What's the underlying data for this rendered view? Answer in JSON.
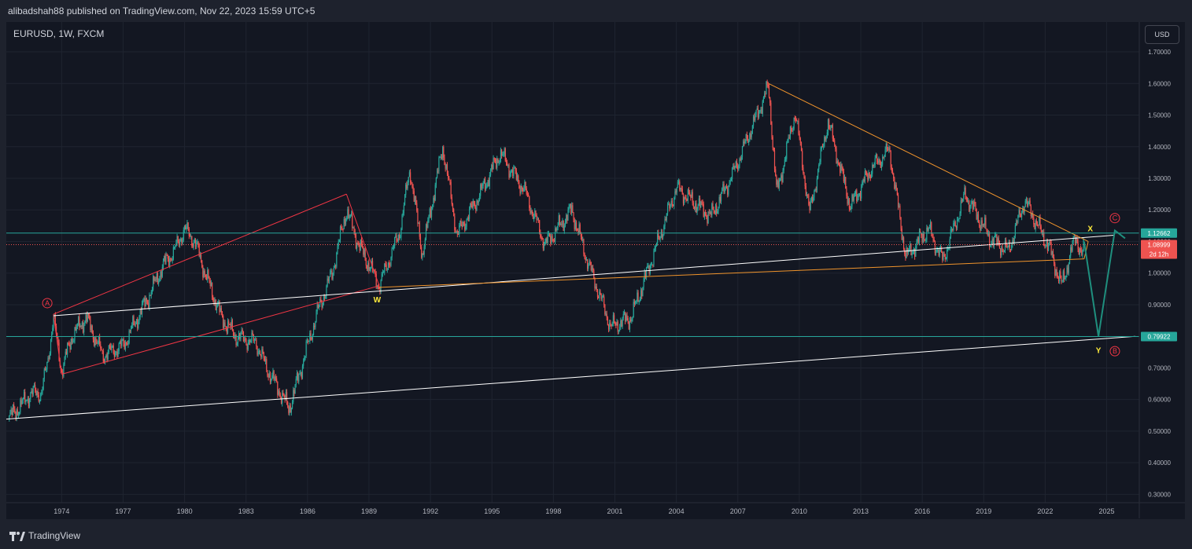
{
  "header": {
    "publisher_text": "alibadshah88 published on TradingView.com, Nov 22, 2023 15:59 UTC+5"
  },
  "chart_info": {
    "symbol_text": "EURUSD, 1W, FXCM"
  },
  "currency_button": {
    "label": "USD"
  },
  "footer": {
    "brand": "TradingView",
    "logo_icon": "tradingview-logo-icon"
  },
  "colors": {
    "background": "#131722",
    "up": "#26a69a",
    "down": "#ef5350",
    "text": "#d1d4dc",
    "channel": "#f23645",
    "wedge": "#f0942c",
    "trendline": "#ffffff",
    "level": "#26a69a",
    "projection": "#1f8f7e",
    "label_yellow": "#ffeb3b"
  },
  "chart_data": {
    "type": "candlestick",
    "title": "EURUSD, 1W, FXCM",
    "xlabel": "",
    "ylabel": "",
    "x_ticks": [
      "1974",
      "1977",
      "1980",
      "1983",
      "1986",
      "1989",
      "1992",
      "1995",
      "1998",
      "2001",
      "2004",
      "2007",
      "2010",
      "2013",
      "2016",
      "2019",
      "2022",
      "2025"
    ],
    "y_ticks": [
      "1.70000",
      "1.60000",
      "1.50000",
      "1.40000",
      "1.30000",
      "1.20000",
      "1.10000",
      "1.00000",
      "0.90000",
      "0.80000",
      "0.70000",
      "0.60000",
      "0.50000",
      "0.40000",
      "0.30000"
    ],
    "ylim": [
      0.275,
      1.72
    ],
    "xlim": [
      1971.3,
      2026.4
    ],
    "grid": true,
    "price_path": [
      {
        "t": 1971.4,
        "p": 0.54
      },
      {
        "t": 1972.0,
        "p": 0.58
      },
      {
        "t": 1972.5,
        "p": 0.62
      },
      {
        "t": 1973.0,
        "p": 0.62
      },
      {
        "t": 1973.3,
        "p": 0.71
      },
      {
        "t": 1973.6,
        "p": 0.86
      },
      {
        "t": 1974.0,
        "p": 0.69
      },
      {
        "t": 1974.5,
        "p": 0.8
      },
      {
        "t": 1975.2,
        "p": 0.86
      },
      {
        "t": 1976.0,
        "p": 0.74
      },
      {
        "t": 1977.0,
        "p": 0.77
      },
      {
        "t": 1978.2,
        "p": 0.92
      },
      {
        "t": 1979.0,
        "p": 1.03
      },
      {
        "t": 1979.5,
        "p": 1.07
      },
      {
        "t": 1980.0,
        "p": 1.14
      },
      {
        "t": 1980.5,
        "p": 1.1
      },
      {
        "t": 1981.0,
        "p": 1.0
      },
      {
        "t": 1981.8,
        "p": 0.86
      },
      {
        "t": 1982.5,
        "p": 0.8
      },
      {
        "t": 1983.5,
        "p": 0.78
      },
      {
        "t": 1984.0,
        "p": 0.7
      },
      {
        "t": 1984.7,
        "p": 0.62
      },
      {
        "t": 1985.1,
        "p": 0.57
      },
      {
        "t": 1985.6,
        "p": 0.68
      },
      {
        "t": 1986.5,
        "p": 0.88
      },
      {
        "t": 1987.2,
        "p": 1.0
      },
      {
        "t": 1987.9,
        "p": 1.2
      },
      {
        "t": 1988.5,
        "p": 1.09
      },
      {
        "t": 1989.5,
        "p": 0.96
      },
      {
        "t": 1990.5,
        "p": 1.13
      },
      {
        "t": 1991.0,
        "p": 1.33
      },
      {
        "t": 1991.6,
        "p": 1.06
      },
      {
        "t": 1992.6,
        "p": 1.4
      },
      {
        "t": 1993.3,
        "p": 1.12
      },
      {
        "t": 1994.5,
        "p": 1.26
      },
      {
        "t": 1995.4,
        "p": 1.38
      },
      {
        "t": 1996.6,
        "p": 1.26
      },
      {
        "t": 1997.6,
        "p": 1.09
      },
      {
        "t": 1998.9,
        "p": 1.2
      },
      {
        "t": 1999.6,
        "p": 1.05
      },
      {
        "t": 2000.8,
        "p": 0.83
      },
      {
        "t": 2001.8,
        "p": 0.86
      },
      {
        "t": 2003.0,
        "p": 1.08
      },
      {
        "t": 2004.0,
        "p": 1.27
      },
      {
        "t": 2005.7,
        "p": 1.18
      },
      {
        "t": 2006.8,
        "p": 1.32
      },
      {
        "t": 2007.8,
        "p": 1.48
      },
      {
        "t": 2008.5,
        "p": 1.59
      },
      {
        "t": 2008.9,
        "p": 1.25
      },
      {
        "t": 2009.8,
        "p": 1.51
      },
      {
        "t": 2010.5,
        "p": 1.19
      },
      {
        "t": 2011.4,
        "p": 1.48
      },
      {
        "t": 2012.5,
        "p": 1.21
      },
      {
        "t": 2013.5,
        "p": 1.33
      },
      {
        "t": 2014.4,
        "p": 1.39
      },
      {
        "t": 2015.2,
        "p": 1.05
      },
      {
        "t": 2016.3,
        "p": 1.14
      },
      {
        "t": 2017.0,
        "p": 1.04
      },
      {
        "t": 2018.1,
        "p": 1.25
      },
      {
        "t": 2019.3,
        "p": 1.11
      },
      {
        "t": 2020.2,
        "p": 1.07
      },
      {
        "t": 2021.0,
        "p": 1.23
      },
      {
        "t": 2022.2,
        "p": 1.08
      },
      {
        "t": 2022.8,
        "p": 0.96
      },
      {
        "t": 2023.5,
        "p": 1.12
      },
      {
        "t": 2023.8,
        "p": 1.05
      },
      {
        "t": 2023.9,
        "p": 1.09
      }
    ],
    "horizontal_levels": [
      {
        "value": 1.12662,
        "label": "1.12662",
        "style": "solid",
        "color": "#26a69a"
      },
      {
        "value": 0.79922,
        "label": "0.79922",
        "style": "solid",
        "color": "#26a69a"
      },
      {
        "value": 1.08999,
        "label": "1.08999",
        "sublabel": "2d 12h",
        "style": "dotted",
        "color": "#ef5350"
      }
    ],
    "drawings": [
      {
        "name": "channel-upper-line",
        "color": "#f23645",
        "from": {
          "t": 1973.6,
          "p": 0.87
        },
        "to": {
          "t": 1987.9,
          "p": 1.25
        }
      },
      {
        "name": "channel-lower-line",
        "color": "#f23645",
        "from": {
          "t": 1974.0,
          "p": 0.68
        },
        "to": {
          "t": 1989.5,
          "p": 0.96
        }
      },
      {
        "name": "channel-left-edge",
        "color": "#f23645",
        "from": {
          "t": 1973.6,
          "p": 0.87
        },
        "to": {
          "t": 1974.0,
          "p": 0.68
        }
      },
      {
        "name": "channel-right-edge",
        "color": "#f23645",
        "from": {
          "t": 1987.9,
          "p": 1.25
        },
        "to": {
          "t": 1989.5,
          "p": 0.96
        }
      },
      {
        "name": "white-upper-trendline",
        "color": "#ffffff",
        "from": {
          "t": 1973.6,
          "p": 0.865
        },
        "to": {
          "t": 2025.4,
          "p": 1.12
        }
      },
      {
        "name": "white-lower-trendline",
        "color": "#ffffff",
        "from": {
          "t": 1971.3,
          "p": 0.538
        },
        "to": {
          "t": 2026.4,
          "p": 0.8
        }
      },
      {
        "name": "wedge-upper-line",
        "color": "#f0942c",
        "from": {
          "t": 2008.5,
          "p": 1.6
        },
        "to": {
          "t": 2024.1,
          "p": 1.1
        }
      },
      {
        "name": "wedge-lower-line",
        "color": "#f0942c",
        "from": {
          "t": 1989.5,
          "p": 0.955
        },
        "to": {
          "t": 2023.9,
          "p": 1.045
        }
      },
      {
        "name": "wedge-tip-edge",
        "color": "#f0942c",
        "from": {
          "t": 2024.1,
          "p": 1.1
        },
        "to": {
          "t": 2023.9,
          "p": 1.045
        }
      }
    ],
    "projection": [
      {
        "t": 2023.9,
        "p": 1.1
      },
      {
        "t": 2024.6,
        "p": 0.8
      },
      {
        "t": 2025.4,
        "p": 1.135
      },
      {
        "t": 2025.9,
        "p": 1.11
      }
    ],
    "annotations": [
      {
        "text": "A",
        "t": 1973.3,
        "p": 0.905,
        "style": "circle",
        "color": "#f23645"
      },
      {
        "text": "W",
        "t": 1989.4,
        "p": 0.915,
        "style": "plain",
        "color": "#ffeb3b"
      },
      {
        "text": "X",
        "t": 2024.2,
        "p": 1.14,
        "style": "plain",
        "color": "#ffeb3b"
      },
      {
        "text": "Y",
        "t": 2024.6,
        "p": 0.755,
        "style": "plain",
        "color": "#ffeb3b"
      },
      {
        "text": "B",
        "t": 2025.4,
        "p": 0.753,
        "style": "circle",
        "color": "#f23645"
      },
      {
        "text": "C",
        "t": 2025.4,
        "p": 1.174,
        "style": "circle",
        "color": "#f23645"
      }
    ]
  }
}
